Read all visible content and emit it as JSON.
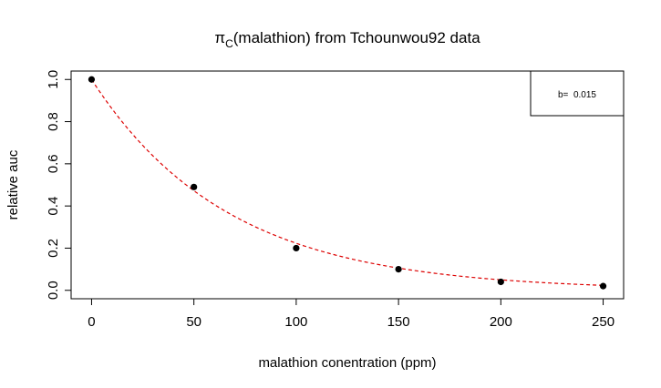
{
  "chart_data": {
    "type": "scatter",
    "title_prefix": "π",
    "title_subscript": "C",
    "title_suffix": "(malathion) from Tchounwou92 data",
    "xlabel": "malathion conentration (ppm)",
    "ylabel": "relative auc",
    "xlim": [
      -10,
      260
    ],
    "ylim": [
      -0.04,
      1.04
    ],
    "x_ticks": [
      0,
      50,
      100,
      150,
      200,
      250
    ],
    "y_ticks": [
      0.0,
      0.2,
      0.4,
      0.6,
      0.8,
      1.0
    ],
    "x_tick_labels": [
      "0",
      "50",
      "100",
      "150",
      "200",
      "250"
    ],
    "y_tick_labels": [
      "0.0",
      "0.2",
      "0.4",
      "0.6",
      "0.8",
      "1.0"
    ],
    "points": [
      {
        "x": 0,
        "y": 1.0
      },
      {
        "x": 50,
        "y": 0.49
      },
      {
        "x": 100,
        "y": 0.2
      },
      {
        "x": 150,
        "y": 0.1
      },
      {
        "x": 200,
        "y": 0.04
      },
      {
        "x": 250,
        "y": 0.02
      }
    ],
    "fit_curve": {
      "model": "exp(-b*x)",
      "b": 0.015,
      "color": "#dd0000",
      "style": "dashed"
    },
    "legend": {
      "position": "top-right",
      "text": "b=  0.015"
    },
    "grid": false
  }
}
